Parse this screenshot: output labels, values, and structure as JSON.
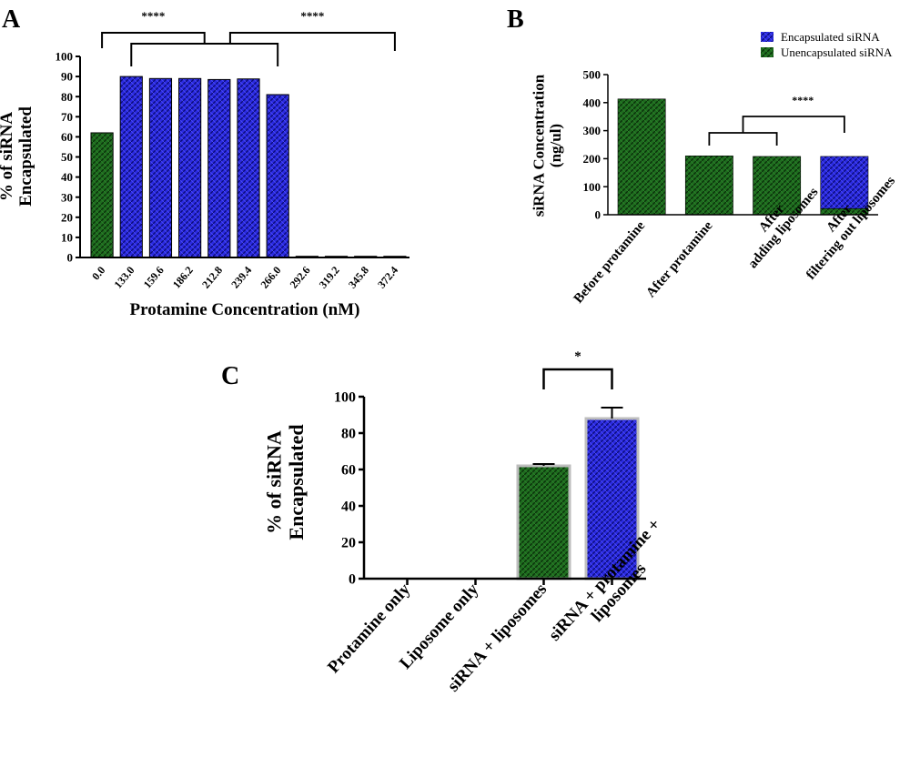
{
  "colors": {
    "green": "#145214",
    "blue": "#1a1ac8",
    "axis": "#000000"
  },
  "panels": {
    "A": {
      "letter": "A"
    },
    "B": {
      "letter": "B"
    },
    "C": {
      "letter": "C"
    }
  },
  "chart_data": [
    {
      "id": "A",
      "type": "bar",
      "title": "",
      "xlabel": "Protamine Concentration (nM)",
      "ylabel_lines": [
        "% of siRNA",
        "Encapsulated"
      ],
      "categories": [
        "0.0",
        "133.0",
        "159.6",
        "186.2",
        "212.8",
        "239.4",
        "266.0",
        "292.6",
        "319.2",
        "345.8",
        "372.4"
      ],
      "values": [
        62,
        90,
        89,
        89,
        88.5,
        88.8,
        81,
        0.6,
        0.6,
        0.6,
        0.6
      ],
      "bar_colors": [
        "green",
        "blue",
        "blue",
        "blue",
        "blue",
        "blue",
        "blue",
        "blue",
        "blue",
        "blue",
        "blue"
      ],
      "ylim": [
        0,
        100
      ],
      "yticks": [
        0,
        10,
        20,
        30,
        40,
        50,
        60,
        70,
        80,
        90,
        100
      ],
      "annotations": [
        {
          "label": "****",
          "from": [
            0
          ],
          "to": [
            1,
            6
          ]
        },
        {
          "label": "****",
          "from": [
            1,
            6
          ],
          "to": [
            10
          ]
        }
      ]
    },
    {
      "id": "B",
      "type": "bar",
      "stacked": true,
      "title": "",
      "xlabel": "",
      "ylabel_lines": [
        "siRNA Concentration",
        "(ng/ul)"
      ],
      "categories": [
        "Before protamine",
        "After protamine",
        "After\nadding liposomes",
        "After\nfiltering out liposomes"
      ],
      "series": [
        {
          "name": "Unencapsulated siRNA",
          "color": "green",
          "values": [
            413,
            210,
            208,
            22
          ]
        },
        {
          "name": "Encapsulated siRNA",
          "color": "blue",
          "values": [
            0,
            0,
            0,
            186
          ]
        }
      ],
      "legend_position": "top-right",
      "ylim": [
        0,
        500
      ],
      "yticks": [
        0,
        100,
        200,
        300,
        400,
        500
      ],
      "annotations": [
        {
          "label": "****",
          "from": [
            1,
            2
          ],
          "to": [
            3
          ]
        }
      ]
    },
    {
      "id": "C",
      "type": "bar",
      "title": "",
      "xlabel": "",
      "ylabel_lines": [
        "% of siRNA",
        "Encapsulated"
      ],
      "categories": [
        "Protamine only",
        "Liposome only",
        "siRNA + liposomes",
        "siRNA + protamine +\nliposomes"
      ],
      "values": [
        0,
        0,
        62,
        88
      ],
      "errors": [
        0,
        0,
        1,
        6
      ],
      "bar_colors": [
        "green",
        "green",
        "green",
        "blue"
      ],
      "ylim": [
        0,
        100
      ],
      "yticks": [
        0,
        20,
        40,
        60,
        80,
        100
      ],
      "annotations": [
        {
          "label": "*",
          "from": [
            2
          ],
          "to": [
            3
          ]
        }
      ]
    }
  ]
}
